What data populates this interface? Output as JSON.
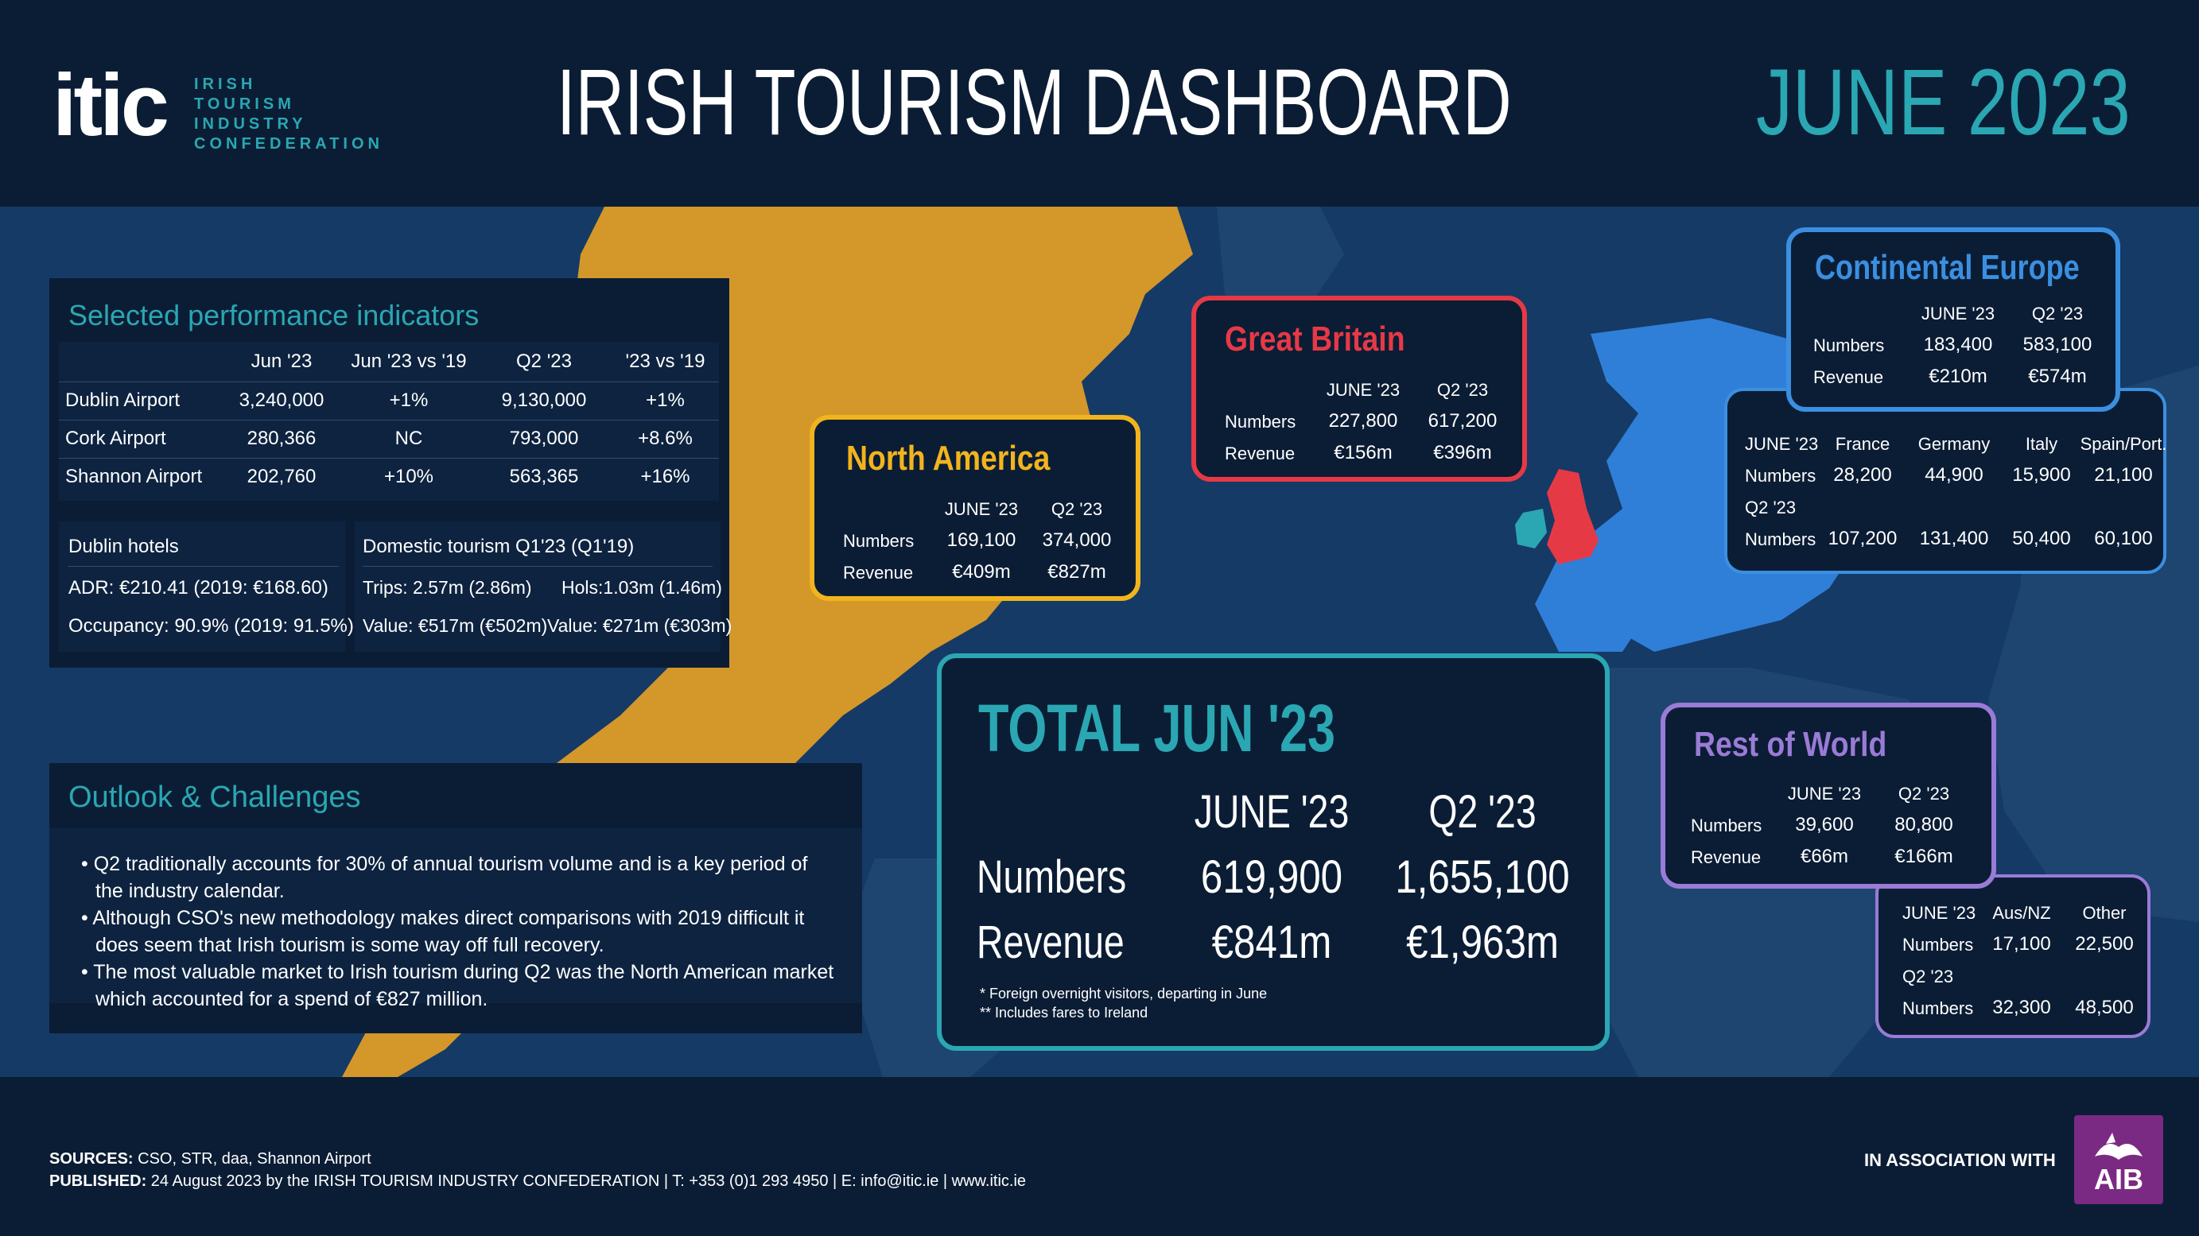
{
  "header": {
    "logo_mark": "itic",
    "logo_lines": [
      "IRISH",
      "TOURISM",
      "INDUSTRY",
      "CONFEDERATION"
    ],
    "title": "IRISH TOURISM DASHBOARD",
    "period": "JUNE 2023"
  },
  "colors": {
    "teal": "#2aa7b2",
    "north_america": "#f2b41d",
    "great_britain": "#e63946",
    "continental_europe": "#3b8fe0",
    "rest_of_world": "#9a7bd6",
    "aib": "#7b2a83"
  },
  "indicators": {
    "title": "Selected performance indicators",
    "columns": [
      "",
      "Jun '23",
      "Jun '23 vs '19",
      "Q2 '23",
      "'23 vs '19"
    ],
    "rows": [
      [
        "Dublin Airport",
        "3,240,000",
        "+1%",
        "9,130,000",
        "+1%"
      ],
      [
        "Cork Airport",
        "280,366",
        "NC",
        "793,000",
        "+8.6%"
      ],
      [
        "Shannon Airport",
        "202,760",
        "+10%",
        "563,365",
        "+16%"
      ]
    ],
    "hotels": {
      "title": "Dublin hotels",
      "adr": "ADR: €210.41  (2019: €168.60)",
      "occupancy": "Occupancy: 90.9%  (2019: 91.5%)"
    },
    "domestic": {
      "title": "Domestic tourism Q1'23 (Q1'19)",
      "trips": "Trips:  2.57m (2.86m)",
      "hols": "Hols:1.03m (1.46m)",
      "value1": "Value: €517m (€502m)",
      "value2": "Value: €271m (€303m)"
    }
  },
  "outlook": {
    "title": "Outlook & Challenges",
    "bullets": [
      "Q2 traditionally accounts for 30% of annual tourism volume and is a key period of the industry calendar.",
      "Although CSO's new methodology makes direct comparisons with 2019 difficult it does seem that Irish tourism is some way off full recovery.",
      "The most valuable market to Irish tourism during Q2 was the North American market which accounted for a spend of €827 million."
    ]
  },
  "north_america": {
    "title": "North America",
    "col1": "JUNE '23",
    "col2": "Q2 '23",
    "numbers_label": "Numbers",
    "numbers_jun": "169,100",
    "numbers_q2": "374,000",
    "revenue_label": "Revenue",
    "revenue_jun": "€409m",
    "revenue_q2": "€827m"
  },
  "great_britain": {
    "title": "Great Britain",
    "col1": "JUNE '23",
    "col2": "Q2 '23",
    "numbers_label": "Numbers",
    "numbers_jun": "227,800",
    "numbers_q2": "617,200",
    "revenue_label": "Revenue",
    "revenue_jun": "€156m",
    "revenue_q2": "€396m"
  },
  "continental_europe": {
    "title": "Continental Europe",
    "col1": "JUNE '23",
    "col2": "Q2 '23",
    "numbers_label": "Numbers",
    "numbers_jun": "183,400",
    "numbers_q2": "583,100",
    "revenue_label": "Revenue",
    "revenue_jun": "€210m",
    "revenue_q2": "€574m",
    "breakdown": {
      "jun_label": "JUNE '23",
      "countries": [
        "France",
        "Germany",
        "Italy",
        "Spain/Port."
      ],
      "numbers_label": "Numbers",
      "jun_numbers": [
        "28,200",
        "44,900",
        "15,900",
        "21,100"
      ],
      "q2_label": "Q2 '23",
      "q2_numbers": [
        "107,200",
        "131,400",
        "50,400",
        "60,100"
      ]
    }
  },
  "rest_of_world": {
    "title": "Rest of World",
    "col1": "JUNE '23",
    "col2": "Q2 '23",
    "numbers_label": "Numbers",
    "numbers_jun": "39,600",
    "numbers_q2": "80,800",
    "revenue_label": "Revenue",
    "revenue_jun": "€66m",
    "revenue_q2": "€166m",
    "breakdown": {
      "jun_label": "JUNE '23",
      "regions": [
        "Aus/NZ",
        "Other"
      ],
      "numbers_label": "Numbers",
      "jun_numbers": [
        "17,100",
        "22,500"
      ],
      "q2_label": "Q2 '23",
      "q2_numbers": [
        "32,300",
        "48,500"
      ]
    }
  },
  "total": {
    "title": "TOTAL JUN '23",
    "col1": "JUNE '23",
    "col2": "Q2 '23",
    "numbers_label": "Numbers",
    "numbers_jun": "619,900",
    "numbers_q2": "1,655,100",
    "revenue_label": "Revenue",
    "revenue_jun": "€841m",
    "revenue_q2": "€1,963m",
    "note1": "*  Foreign overnight visitors, departing in June",
    "note2": "** Includes fares to Ireland"
  },
  "footer": {
    "sources_label": "SOURCES:",
    "sources": " CSO, STR, daa, Shannon Airport",
    "published_label": "PUBLISHED:",
    "published": " 24 August 2023 by the IRISH TOURISM INDUSTRY CONFEDERATION  |  T: +353 (0)1 293 4950  |  E: info@itic.ie  |  www.itic.ie",
    "association": "IN ASSOCIATION WITH",
    "aib": "AIB"
  }
}
